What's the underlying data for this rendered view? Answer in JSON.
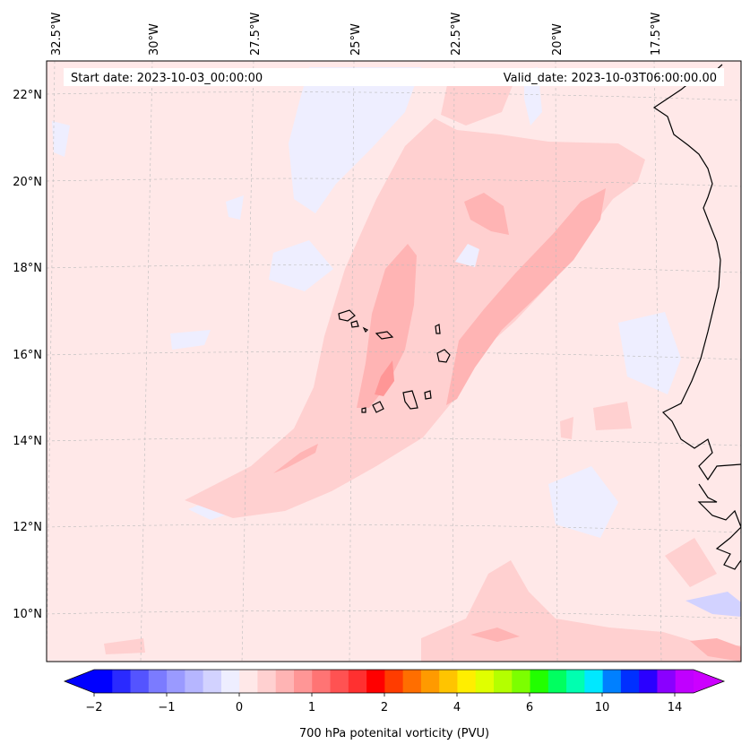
{
  "map": {
    "start_date_label": "Start date: 2023-10-03_00:00:00",
    "valid_date_label": "Valid_date: 2023-10-03T06:00:00.00",
    "lon_labels": [
      "32.5°W",
      "30°W",
      "27.5°W",
      "25°W",
      "22.5°W",
      "20°W",
      "17.5°W"
    ],
    "lat_labels": [
      "22°N",
      "20°N",
      "18°N",
      "16°N",
      "14°N",
      "12°N",
      "10°N"
    ],
    "colorbar": {
      "label": "700 hPa potenital vorticity (PVU)",
      "tick_labels": [
        "−2",
        "−1",
        "0",
        "1",
        "2",
        "4",
        "6",
        "10",
        "14"
      ],
      "colors": [
        "#0000ff",
        "#2a2aff",
        "#5454ff",
        "#7b7bff",
        "#9a9aff",
        "#b6b6ff",
        "#d2d2ff",
        "#eeeeff",
        "#ffe8e8",
        "#ffd0d0",
        "#ffb4b4",
        "#ff9696",
        "#ff7474",
        "#ff5252",
        "#ff3030",
        "#ff0000",
        "#ff3c00",
        "#ff6e00",
        "#ff9a00",
        "#ffc400",
        "#ffee00",
        "#e0ff00",
        "#b4ff00",
        "#7cff00",
        "#22ff00",
        "#00ff60",
        "#00ffb0",
        "#00e8ff",
        "#0080ff",
        "#0030ff",
        "#2a00ff",
        "#8a00ff",
        "#c000ff"
      ],
      "under_color": "#0000ff",
      "over_color": "#cc00ff"
    },
    "fill_colors": {
      "background": "#ffe8e8",
      "light_pos": "#ffd0d0",
      "mid_pos": "#ffb4b4",
      "strong_pos": "#ff9696",
      "light_neg": "#eeeeff",
      "mid_neg": "#d2d2ff"
    }
  }
}
